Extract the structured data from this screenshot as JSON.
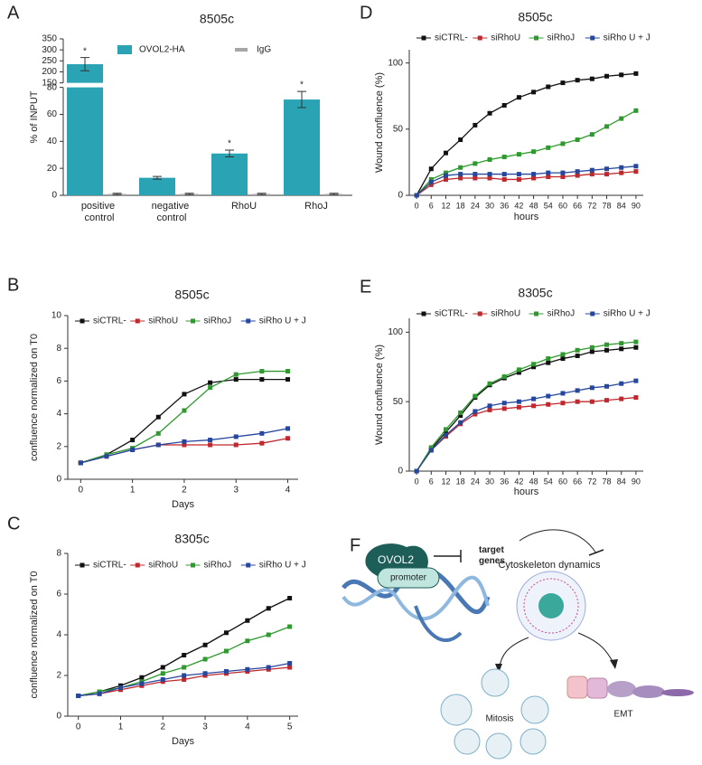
{
  "chart_data": [
    {
      "type": "bar",
      "panel": "A",
      "title": "8505c",
      "ylabel": "% of INPUT",
      "categories": [
        "positive control",
        "negative control",
        "RhoU",
        "RhoJ"
      ],
      "series": [
        {
          "name": "OVOL2-HA",
          "color": "#2aa3b5",
          "values": [
            235,
            13,
            31,
            71
          ],
          "errors": [
            30,
            1,
            2.5,
            6
          ]
        },
        {
          "name": "IgG",
          "color": "#a6a6a6",
          "values": [
            1,
            1,
            1,
            1
          ],
          "errors": [
            0.5,
            0.5,
            0.5,
            0.5
          ]
        }
      ],
      "ylim": [
        0,
        350
      ],
      "axis_break": [
        80,
        150
      ],
      "yticks": [
        0,
        20,
        40,
        60,
        80,
        150,
        200,
        250,
        300,
        350
      ],
      "annotations": [
        {
          "x": "positive control",
          "text": "*"
        },
        {
          "x": "RhoU",
          "text": "*"
        },
        {
          "x": "RhoJ",
          "text": "*"
        }
      ],
      "legend": "top"
    },
    {
      "type": "line",
      "panel": "B",
      "title": "8505c",
      "ylabel": "confluence normalized on T0",
      "xlabel": "Days",
      "x": [
        0,
        0.5,
        1,
        1.5,
        2,
        2.5,
        3,
        3.5,
        4
      ],
      "series": [
        {
          "name": "siCTRL-",
          "color": "#111111",
          "values": [
            1,
            1.5,
            2.4,
            3.8,
            5.2,
            5.9,
            6.1,
            6.1,
            6.1
          ]
        },
        {
          "name": "siRhoU",
          "color": "#c0282d",
          "values": [
            1,
            1.4,
            1.8,
            2.1,
            2.1,
            2.1,
            2.1,
            2.2,
            2.5
          ]
        },
        {
          "name": "siRhoJ",
          "color": "#2e9a2e",
          "values": [
            1,
            1.5,
            1.9,
            2.8,
            4.2,
            5.6,
            6.4,
            6.6,
            6.6
          ]
        },
        {
          "name": "siRho U + J",
          "color": "#2647a0",
          "values": [
            1,
            1.4,
            1.8,
            2.1,
            2.3,
            2.4,
            2.6,
            2.8,
            3.1
          ]
        }
      ],
      "xlim": [
        -0.25,
        4.2
      ],
      "xticks": [
        0,
        1,
        2,
        3,
        4
      ],
      "ylim": [
        0,
        10
      ],
      "yticks": [
        0,
        2,
        4,
        6,
        8,
        10
      ],
      "legend": "top"
    },
    {
      "type": "line",
      "panel": "C",
      "title": "8305c",
      "ylabel": "confluence normalized on T0",
      "xlabel": "Days",
      "x": [
        0,
        0.5,
        1,
        1.5,
        2,
        2.5,
        3,
        3.5,
        4,
        4.5,
        5
      ],
      "series": [
        {
          "name": "siCTRL-",
          "color": "#111111",
          "values": [
            1,
            1.2,
            1.5,
            1.9,
            2.4,
            3.0,
            3.5,
            4.1,
            4.7,
            5.3,
            5.8
          ]
        },
        {
          "name": "siRhoU",
          "color": "#c0282d",
          "values": [
            1,
            1.1,
            1.3,
            1.5,
            1.7,
            1.8,
            2.0,
            2.1,
            2.2,
            2.3,
            2.4
          ]
        },
        {
          "name": "siRhoJ",
          "color": "#2e9a2e",
          "values": [
            1,
            1.2,
            1.4,
            1.7,
            2.1,
            2.4,
            2.8,
            3.2,
            3.7,
            4.0,
            4.4
          ]
        },
        {
          "name": "siRho U + J",
          "color": "#2647a0",
          "values": [
            1,
            1.1,
            1.4,
            1.6,
            1.8,
            2.0,
            2.1,
            2.2,
            2.3,
            2.4,
            2.6
          ]
        }
      ],
      "xlim": [
        -0.25,
        5.2
      ],
      "xticks": [
        0,
        1,
        2,
        3,
        4,
        5
      ],
      "ylim": [
        0,
        8
      ],
      "yticks": [
        0,
        2,
        4,
        6,
        8
      ],
      "legend": "top"
    },
    {
      "type": "line",
      "panel": "D",
      "title": "8505c",
      "ylabel": "Wound confluence (%)",
      "xlabel": "hours",
      "x": [
        0,
        6,
        12,
        18,
        24,
        30,
        36,
        42,
        48,
        54,
        60,
        66,
        72,
        78,
        84,
        90
      ],
      "series": [
        {
          "name": "siCTRL-",
          "color": "#111111",
          "values": [
            0,
            20,
            32,
            42,
            53,
            62,
            68,
            74,
            78,
            82,
            85,
            87,
            88,
            90,
            91,
            92
          ]
        },
        {
          "name": "siRhoU",
          "color": "#c0282d",
          "values": [
            0,
            8,
            12,
            13,
            13,
            13,
            12,
            12,
            13,
            14,
            14,
            15,
            16,
            16,
            17,
            18
          ]
        },
        {
          "name": "siRhoJ",
          "color": "#2e9a2e",
          "values": [
            0,
            12,
            17,
            21,
            24,
            27,
            29,
            31,
            33,
            36,
            39,
            42,
            46,
            52,
            58,
            64
          ]
        },
        {
          "name": "siRho U + J",
          "color": "#2647a0",
          "values": [
            0,
            10,
            15,
            16,
            16,
            16,
            16,
            16,
            16,
            17,
            17,
            18,
            19,
            20,
            21,
            22
          ]
        }
      ],
      "xlim": [
        -3,
        93
      ],
      "xticks": [
        0,
        6,
        12,
        18,
        24,
        30,
        36,
        42,
        48,
        54,
        60,
        66,
        72,
        78,
        84,
        90
      ],
      "ylim": [
        0,
        110
      ],
      "yticks": [
        0,
        50,
        100
      ],
      "legend": "top"
    },
    {
      "type": "line",
      "panel": "E",
      "title": "8305c",
      "ylabel": "Wound confluence (%)",
      "xlabel": "hours",
      "x": [
        0,
        6,
        12,
        18,
        24,
        30,
        36,
        42,
        48,
        54,
        60,
        66,
        72,
        78,
        84,
        90
      ],
      "series": [
        {
          "name": "siCTRL-",
          "color": "#111111",
          "values": [
            0,
            16,
            28,
            40,
            53,
            62,
            67,
            71,
            75,
            78,
            81,
            83,
            86,
            87,
            88,
            89
          ]
        },
        {
          "name": "siRhoU",
          "color": "#c0282d",
          "values": [
            0,
            15,
            25,
            34,
            41,
            44,
            45,
            46,
            47,
            48,
            49,
            50,
            50,
            51,
            52,
            53
          ]
        },
        {
          "name": "siRhoJ",
          "color": "#2e9a2e",
          "values": [
            0,
            17,
            30,
            42,
            54,
            63,
            68,
            73,
            77,
            81,
            84,
            87,
            89,
            91,
            92,
            93
          ]
        },
        {
          "name": "siRho U + J",
          "color": "#2647a0",
          "values": [
            0,
            15,
            26,
            35,
            43,
            47,
            49,
            50,
            52,
            54,
            56,
            58,
            60,
            61,
            63,
            65
          ]
        }
      ],
      "xlim": [
        -3,
        93
      ],
      "xticks": [
        0,
        6,
        12,
        18,
        24,
        30,
        36,
        42,
        48,
        54,
        60,
        66,
        72,
        78,
        84,
        90
      ],
      "ylim": [
        0,
        110
      ],
      "yticks": [
        0,
        50,
        100
      ],
      "legend": "top"
    }
  ],
  "diagram": {
    "panel": "F",
    "ovol2": "OVOL2",
    "promoter": "promoter",
    "target": "target genes",
    "cytoskeleton": "Cytoskeleton dynamics",
    "mitosis": "Mitosis",
    "emt": "EMT"
  }
}
